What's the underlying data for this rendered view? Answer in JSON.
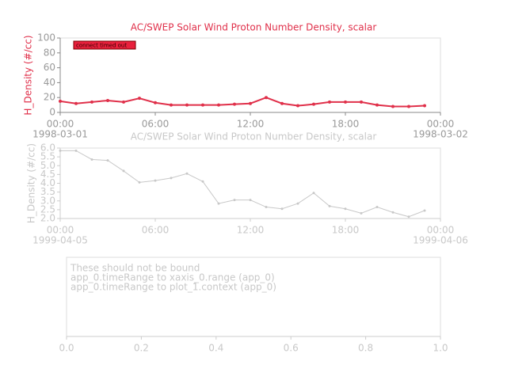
{
  "chart_data": [
    {
      "type": "line",
      "title": "AC/SWEP  Solar Wind Proton Number Density, scalar",
      "ylabel": "H_Density (#/cc)",
      "color": "#e0304a",
      "text_color": "#999999",
      "annotation": "connect timed out",
      "x": [
        0,
        1,
        2,
        3,
        4,
        5,
        6,
        7,
        8,
        9,
        10,
        11,
        12,
        13,
        14,
        15,
        16,
        17,
        18,
        19,
        20,
        21,
        22,
        23
      ],
      "values": [
        15,
        12,
        14,
        16,
        14,
        19,
        13,
        10,
        10,
        10,
        10,
        11,
        12,
        20,
        12,
        9,
        11,
        14,
        14,
        14,
        10,
        8,
        8,
        9
      ],
      "xlim": [
        0,
        24
      ],
      "xticks": [
        {
          "value": 0,
          "label": "00:00"
        },
        {
          "value": 6,
          "label": "06:00"
        },
        {
          "value": 12,
          "label": "12:00"
        },
        {
          "value": 18,
          "label": "18:00"
        },
        {
          "value": 24,
          "label": "00:00"
        }
      ],
      "date_labels": [
        {
          "value": 0,
          "label": "1998-03-01"
        },
        {
          "value": 24,
          "label": "1998-03-02"
        }
      ],
      "ylim": [
        0,
        100
      ],
      "yticks": [
        0,
        20,
        40,
        60,
        80,
        100
      ]
    },
    {
      "type": "line",
      "title": "AC/SWEP  Solar Wind Proton Number Density, scalar",
      "ylabel": "H_Density (#/cc)",
      "color": "#c8c8c8",
      "text_color": "#c8c8c8",
      "x": [
        0,
        1,
        2,
        3,
        4,
        5,
        6,
        7,
        8,
        9,
        10,
        11,
        12,
        13,
        14,
        15,
        16,
        17,
        18,
        19,
        20,
        21,
        22,
        23
      ],
      "values": [
        5.85,
        5.85,
        5.35,
        5.3,
        4.7,
        4.05,
        4.15,
        4.3,
        4.55,
        4.1,
        2.85,
        3.05,
        3.05,
        2.65,
        2.55,
        2.85,
        3.45,
        2.7,
        2.55,
        2.3,
        2.65,
        2.35,
        2.1,
        2.45
      ],
      "xlim": [
        0,
        24
      ],
      "xticks": [
        {
          "value": 0,
          "label": "00:00"
        },
        {
          "value": 6,
          "label": "06:00"
        },
        {
          "value": 12,
          "label": "12:00"
        },
        {
          "value": 18,
          "label": "18:00"
        },
        {
          "value": 24,
          "label": "00:00"
        }
      ],
      "date_labels": [
        {
          "value": 0,
          "label": "1999-04-05"
        },
        {
          "value": 24,
          "label": "1999-04-06"
        }
      ],
      "ylim": [
        2,
        6
      ],
      "yticks": [
        {
          "value": 2,
          "label": "2.0"
        },
        {
          "value": 2.5,
          "label": "2.5"
        },
        {
          "value": 3,
          "label": "3.0"
        },
        {
          "value": 3.5,
          "label": "3.5"
        },
        {
          "value": 4,
          "label": "4.0"
        },
        {
          "value": 4.5,
          "label": "4.5"
        },
        {
          "value": 5,
          "label": "5.0"
        },
        {
          "value": 5.5,
          "label": "5.5"
        },
        {
          "value": 6,
          "label": "6.0"
        }
      ]
    },
    {
      "type": "empty",
      "color": "#c8c8c8",
      "text_color": "#c8c8c8",
      "annotations": [
        "These should not be bound",
        "app_0.timeRange to xaxis_0.range  (app_0)",
        "app_0.timeRange to plot_1.context  (app_0)"
      ],
      "xlim": [
        0,
        1
      ],
      "xticks": [
        {
          "value": 0,
          "label": "0.0"
        },
        {
          "value": 0.2,
          "label": "0.2"
        },
        {
          "value": 0.4,
          "label": "0.4"
        },
        {
          "value": 0.6,
          "label": "0.6"
        },
        {
          "value": 0.8,
          "label": "0.8"
        },
        {
          "value": 1,
          "label": "1.0"
        }
      ]
    }
  ]
}
